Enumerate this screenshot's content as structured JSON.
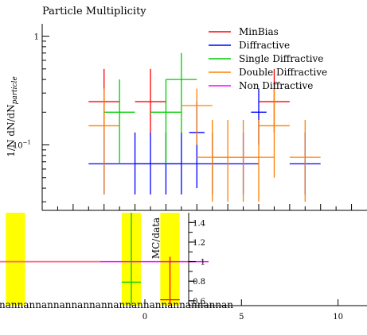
{
  "chart_data": [
    {
      "type": "scatter",
      "title": "Particle Multiplicity",
      "ylabel": "1/N dN/dN",
      "ylabel_sub": "particle",
      "ylog": true,
      "ylim": [
        0.025,
        1.3
      ],
      "xlim": [
        0,
        10.5
      ],
      "ytick_labels": [
        {
          "label": "10",
          "exp": "−1",
          "value": 0.1
        },
        {
          "label": "1",
          "exp": "",
          "value": 1
        }
      ],
      "legend_position": "top-right",
      "series": [
        {
          "name": "MinBias",
          "color": "#ff0000",
          "points": [
            {
              "x": 2.0,
              "y": 0.25,
              "xerr": 0.5,
              "ylo": 0.13,
              "yhi": 0.5
            },
            {
              "x": 3.5,
              "y": 0.25,
              "xerr": 0.5,
              "ylo": 0.13,
              "yhi": 0.5
            },
            {
              "x": 7.5,
              "y": 0.25,
              "xerr": 0.5,
              "ylo": 0.13,
              "yhi": 0.5
            }
          ]
        },
        {
          "name": "Diffractive",
          "color": "#0000ff",
          "points": [
            {
              "x": 2.0,
              "y": 0.067,
              "xerr": 0.5,
              "ylo": 0.035,
              "yhi": 0.13
            },
            {
              "x": 3.0,
              "y": 0.067,
              "xerr": 0.5,
              "ylo": 0.035,
              "yhi": 0.13
            },
            {
              "x": 3.5,
              "y": 0.067,
              "xerr": 0.5,
              "ylo": 0.035,
              "yhi": 0.13
            },
            {
              "x": 4.0,
              "y": 0.067,
              "xerr": 0.5,
              "ylo": 0.035,
              "yhi": 0.13
            },
            {
              "x": 4.5,
              "y": 0.067,
              "xerr": 0.5,
              "ylo": 0.035,
              "yhi": 0.13
            },
            {
              "x": 5.0,
              "y": 0.13,
              "xerr": 0.25,
              "ylo": 0.04,
              "yhi": 0.25
            },
            {
              "x": 5.5,
              "y": 0.067,
              "xerr": 0.5,
              "ylo": 0.035,
              "yhi": 0.13
            },
            {
              "x": 6.5,
              "y": 0.067,
              "xerr": 0.5,
              "ylo": 0.035,
              "yhi": 0.13
            },
            {
              "x": 7.0,
              "y": 0.2,
              "xerr": 0.25,
              "ylo": 0.1,
              "yhi": 0.33
            },
            {
              "x": 8.5,
              "y": 0.067,
              "xerr": 0.5,
              "ylo": 0.035,
              "yhi": 0.13
            }
          ]
        },
        {
          "name": "Single Diffractive",
          "color": "#00cc00",
          "points": [
            {
              "x": 2.5,
              "y": 0.2,
              "xerr": 0.5,
              "ylo": 0.067,
              "yhi": 0.4
            },
            {
              "x": 4.0,
              "y": 0.2,
              "xerr": 0.5,
              "ylo": 0.067,
              "yhi": 0.4
            },
            {
              "x": 4.5,
              "y": 0.4,
              "xerr": 0.5,
              "ylo": 0.13,
              "yhi": 0.7
            }
          ]
        },
        {
          "name": "Double Diffractive",
          "color": "#ff8000",
          "points": [
            {
              "x": 2.0,
              "y": 0.15,
              "xerr": 0.5,
              "ylo": 0.035,
              "yhi": 0.33
            },
            {
              "x": 5.0,
              "y": 0.23,
              "xerr": 0.5,
              "ylo": 0.1,
              "yhi": 0.33
            },
            {
              "x": 5.5,
              "y": 0.077,
              "xerr": 0.5,
              "ylo": 0.03,
              "yhi": 0.17
            },
            {
              "x": 6.0,
              "y": 0.077,
              "xerr": 0.5,
              "ylo": 0.03,
              "yhi": 0.17
            },
            {
              "x": 6.5,
              "y": 0.077,
              "xerr": 0.5,
              "ylo": 0.03,
              "yhi": 0.17
            },
            {
              "x": 7.0,
              "y": 0.077,
              "xerr": 0.5,
              "ylo": 0.03,
              "yhi": 0.17
            },
            {
              "x": 7.5,
              "y": 0.15,
              "xerr": 0.5,
              "ylo": 0.05,
              "yhi": 0.33
            },
            {
              "x": 8.5,
              "y": 0.077,
              "xerr": 0.5,
              "ylo": 0.03,
              "yhi": 0.17
            }
          ]
        },
        {
          "name": "Non Diffractive",
          "color": "#ff00ff",
          "points": []
        }
      ]
    },
    {
      "type": "scatter",
      "ylabel": "MC/data",
      "xlim": [
        -7.5,
        11.5
      ],
      "ylim": [
        0.55,
        1.5
      ],
      "xticks": [
        0,
        5,
        10
      ],
      "yticks": [
        0.6,
        0.8,
        1,
        1.2,
        1.4
      ],
      "x_overflow_label": "nannannannannannannannannannannannannan",
      "reference_line": {
        "y": 1,
        "color": "#ff00ff"
      },
      "bands": [
        {
          "x0": -7.2,
          "x1": -6.2,
          "ylo": 0.55,
          "yhi": 1.5,
          "color": "#ffff00"
        },
        {
          "x0": -1.2,
          "x1": -0.2,
          "ylo": 0.55,
          "yhi": 1.5,
          "color": "#ffff00"
        },
        {
          "x0": 0.8,
          "x1": 1.8,
          "ylo": 0.55,
          "yhi": 1.5,
          "color": "#ffff00"
        }
      ],
      "series": [
        {
          "name": "MinBias",
          "color": "#ff0000",
          "points": [
            {
              "x": 1.3,
              "y": 0.61,
              "xerr": 0.5,
              "ylo": 0.52,
              "yhi": 1.05
            }
          ]
        },
        {
          "name": "Diffractive",
          "color": "#0000ff",
          "points": []
        },
        {
          "name": "Single Diffractive",
          "color": "#00cc00",
          "points": [
            {
              "x": -0.7,
              "y": 0.79,
              "xerr": 0.5,
              "ylo": 0.52,
              "yhi": 1.5
            }
          ]
        },
        {
          "name": "Double Diffractive",
          "color": "#ff8000",
          "points": [
            {
              "x": -7.3,
              "y": 1.0,
              "xerr": 5.0,
              "ylo": 1.0,
              "yhi": 1.0
            }
          ]
        }
      ]
    }
  ]
}
